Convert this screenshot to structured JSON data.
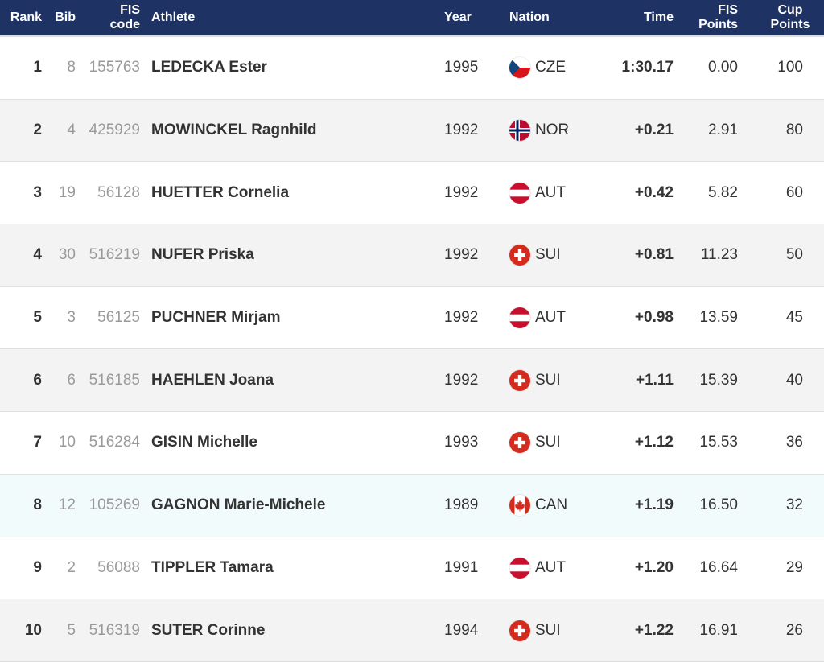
{
  "header": {
    "rank": "Rank",
    "bib": "Bib",
    "fis_code_line1": "FIS",
    "fis_code_line2": "code",
    "athlete": "Athlete",
    "year": "Year",
    "nation": "Nation",
    "time": "Time",
    "fis_points_line1": "FIS",
    "fis_points_line2": "Points",
    "cup_points_line1": "Cup",
    "cup_points_line2": "Points"
  },
  "colors": {
    "header_bg": "#1f3264",
    "row_alt_bg": "#f3f3f3",
    "row_highlight_bg": "#f1fbfb"
  },
  "rows": [
    {
      "rank": "1",
      "bib": "8",
      "fis_code": "155763",
      "athlete": "LEDECKA Ester",
      "year": "1995",
      "nation": "CZE",
      "flag_icon": "czech-flag-icon",
      "time": "1:30.17",
      "fis_points": "0.00",
      "cup_points": "100"
    },
    {
      "rank": "2",
      "bib": "4",
      "fis_code": "425929",
      "athlete": "MOWINCKEL Ragnhild",
      "year": "1992",
      "nation": "NOR",
      "flag_icon": "norway-flag-icon",
      "time": "+0.21",
      "fis_points": "2.91",
      "cup_points": "80"
    },
    {
      "rank": "3",
      "bib": "19",
      "fis_code": "56128",
      "athlete": "HUETTER Cornelia",
      "year": "1992",
      "nation": "AUT",
      "flag_icon": "austria-flag-icon",
      "time": "+0.42",
      "fis_points": "5.82",
      "cup_points": "60"
    },
    {
      "rank": "4",
      "bib": "30",
      "fis_code": "516219",
      "athlete": "NUFER Priska",
      "year": "1992",
      "nation": "SUI",
      "flag_icon": "swiss-flag-icon",
      "time": "+0.81",
      "fis_points": "11.23",
      "cup_points": "50"
    },
    {
      "rank": "5",
      "bib": "3",
      "fis_code": "56125",
      "athlete": "PUCHNER Mirjam",
      "year": "1992",
      "nation": "AUT",
      "flag_icon": "austria-flag-icon",
      "time": "+0.98",
      "fis_points": "13.59",
      "cup_points": "45"
    },
    {
      "rank": "6",
      "bib": "6",
      "fis_code": "516185",
      "athlete": "HAEHLEN Joana",
      "year": "1992",
      "nation": "SUI",
      "flag_icon": "swiss-flag-icon",
      "time": "+1.11",
      "fis_points": "15.39",
      "cup_points": "40"
    },
    {
      "rank": "7",
      "bib": "10",
      "fis_code": "516284",
      "athlete": "GISIN Michelle",
      "year": "1993",
      "nation": "SUI",
      "flag_icon": "swiss-flag-icon",
      "time": "+1.12",
      "fis_points": "15.53",
      "cup_points": "36"
    },
    {
      "rank": "8",
      "bib": "12",
      "fis_code": "105269",
      "athlete": "GAGNON Marie-Michele",
      "year": "1989",
      "nation": "CAN",
      "flag_icon": "canada-flag-icon",
      "time": "+1.19",
      "fis_points": "16.50",
      "cup_points": "32"
    },
    {
      "rank": "9",
      "bib": "2",
      "fis_code": "56088",
      "athlete": "TIPPLER Tamara",
      "year": "1991",
      "nation": "AUT",
      "flag_icon": "austria-flag-icon",
      "time": "+1.20",
      "fis_points": "16.64",
      "cup_points": "29"
    },
    {
      "rank": "10",
      "bib": "5",
      "fis_code": "516319",
      "athlete": "SUTER Corinne",
      "year": "1994",
      "nation": "SUI",
      "flag_icon": "swiss-flag-icon",
      "time": "+1.22",
      "fis_points": "16.91",
      "cup_points": "26"
    }
  ]
}
